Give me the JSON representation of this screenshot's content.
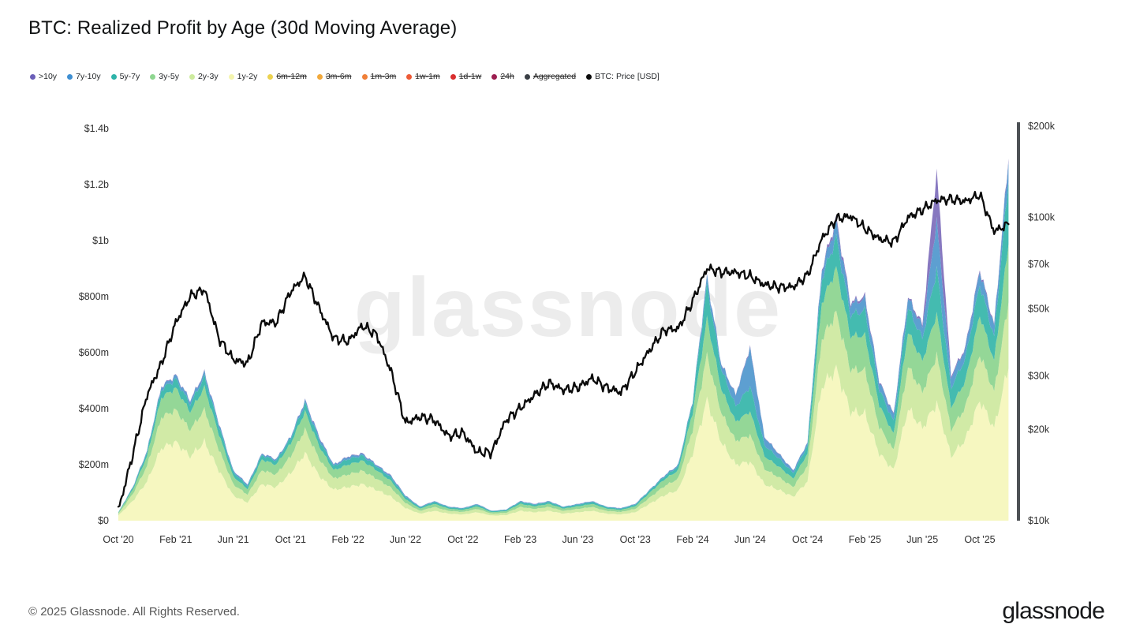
{
  "title": "BTC: Realized Profit by Age (30d Moving Average)",
  "watermark": "glassnode",
  "footer": {
    "copyright": "© 2025 Glassnode. All Rights Reserved.",
    "logo_text": "glassnode"
  },
  "legend": {
    "items": [
      {
        "label": ">10y",
        "color": "#6b5fb8",
        "struck": false
      },
      {
        "label": "7y-10y",
        "color": "#3f8fd2",
        "struck": false
      },
      {
        "label": "5y-7y",
        "color": "#2eb3a9",
        "struck": false
      },
      {
        "label": "3y-5y",
        "color": "#8ed690",
        "struck": false
      },
      {
        "label": "2y-3y",
        "color": "#cdeb9e",
        "struck": false
      },
      {
        "label": "1y-2y",
        "color": "#f4f5ae",
        "struck": false
      },
      {
        "label": "6m-12m",
        "color": "#ecd24f",
        "struck": true
      },
      {
        "label": "3m-6m",
        "color": "#f2a93b",
        "struck": true
      },
      {
        "label": "1m-3m",
        "color": "#f07f38",
        "struck": true
      },
      {
        "label": "1w-1m",
        "color": "#ed5a36",
        "struck": true
      },
      {
        "label": "1d-1w",
        "color": "#d92e2e",
        "struck": true
      },
      {
        "label": "24h",
        "color": "#9c1e50",
        "struck": true
      },
      {
        "label": "Aggregated",
        "color": "#3a3f45",
        "struck": true
      },
      {
        "label": "BTC: Price [USD]",
        "color": "#0a0a0a",
        "struck": false
      }
    ]
  },
  "axes": {
    "y_left_ticks": [
      "$0",
      "$200m",
      "$400m",
      "$600m",
      "$800m",
      "$1b",
      "$1.2b",
      "$1.4b"
    ],
    "y_left_tick_values_musd": [
      0,
      200,
      400,
      600,
      800,
      1000,
      1200,
      1400
    ],
    "y_right_ticks": [
      "$10k",
      "$20k",
      "$30k",
      "$50k",
      "$70k",
      "$100k",
      "$200k"
    ],
    "y_right_tick_values_usd": [
      10000,
      20000,
      30000,
      50000,
      70000,
      100000,
      200000
    ],
    "x_ticks": [
      "Oct '20",
      "Feb '21",
      "Jun '21",
      "Oct '21",
      "Feb '22",
      "Jun '22",
      "Oct '22",
      "Feb '23",
      "Jun '23",
      "Oct '23",
      "Feb '24",
      "Jun '24",
      "Oct '24",
      "Feb '25",
      "Jun '25",
      "Oct '25"
    ]
  },
  "chart_data": {
    "type": "area",
    "stacked": true,
    "title": "BTC: Realized Profit by Age (30d Moving Average)",
    "unit_left": "Realized profit, USD millions (30d MA)",
    "unit_right": "BTC price, USD (log scale)",
    "y_left_range_musd": [
      0,
      1400
    ],
    "y_right_range_usd": [
      10000,
      200000
    ],
    "legend_position": "top",
    "grid": false,
    "months": [
      "2020-10",
      "2020-11",
      "2020-12",
      "2021-01",
      "2021-02",
      "2021-03",
      "2021-04",
      "2021-05",
      "2021-06",
      "2021-07",
      "2021-08",
      "2021-09",
      "2021-10",
      "2021-11",
      "2021-12",
      "2022-01",
      "2022-02",
      "2022-03",
      "2022-04",
      "2022-05",
      "2022-06",
      "2022-07",
      "2022-08",
      "2022-09",
      "2022-10",
      "2022-11",
      "2022-12",
      "2023-01",
      "2023-02",
      "2023-03",
      "2023-04",
      "2023-05",
      "2023-06",
      "2023-07",
      "2023-08",
      "2023-09",
      "2023-10",
      "2023-11",
      "2023-12",
      "2024-01",
      "2024-02",
      "2024-03",
      "2024-04",
      "2024-05",
      "2024-06",
      "2024-07",
      "2024-08",
      "2024-09",
      "2024-10",
      "2024-11",
      "2024-12",
      "2025-01",
      "2025-02",
      "2025-03",
      "2025-04",
      "2025-05",
      "2025-06",
      "2025-07",
      "2025-08",
      "2025-09",
      "2025-10",
      "2025-11",
      "2025-12"
    ],
    "stack_order": "bottom-to-top",
    "series": [
      {
        "name": "1y-2y",
        "color": "#f6f7bd",
        "values": [
          18,
          70,
          140,
          260,
          280,
          230,
          280,
          180,
          90,
          65,
          130,
          120,
          170,
          240,
          160,
          110,
          120,
          130,
          110,
          85,
          45,
          25,
          35,
          25,
          22,
          30,
          18,
          20,
          35,
          30,
          35,
          25,
          30,
          35,
          25,
          22,
          30,
          60,
          90,
          110,
          240,
          430,
          280,
          200,
          210,
          130,
          110,
          85,
          140,
          480,
          540,
          390,
          380,
          240,
          180,
          400,
          330,
          420,
          230,
          290,
          430,
          330,
          550
        ]
      },
      {
        "name": "2y-3y",
        "color": "#cfe9a2",
        "values": [
          6,
          25,
          55,
          110,
          115,
          95,
          115,
          75,
          40,
          28,
          50,
          45,
          60,
          85,
          60,
          40,
          45,
          48,
          40,
          32,
          18,
          10,
          14,
          10,
          9,
          12,
          7,
          8,
          14,
          12,
          14,
          10,
          12,
          14,
          10,
          9,
          12,
          22,
          32,
          40,
          85,
          160,
          105,
          85,
          95,
          55,
          45,
          35,
          55,
          170,
          200,
          150,
          155,
          95,
          70,
          150,
          130,
          170,
          95,
          115,
          165,
          130,
          230
        ]
      },
      {
        "name": "3y-5y",
        "color": "#90d593",
        "values": [
          4,
          15,
          35,
          70,
          78,
          64,
          80,
          55,
          28,
          20,
          38,
          35,
          45,
          65,
          45,
          30,
          35,
          36,
          30,
          24,
          14,
          8,
          11,
          8,
          7,
          9,
          5,
          6,
          11,
          9,
          11,
          8,
          9,
          11,
          8,
          7,
          9,
          17,
          24,
          30,
          62,
          130,
          85,
          68,
          85,
          45,
          38,
          30,
          45,
          130,
          160,
          120,
          125,
          78,
          58,
          125,
          110,
          150,
          80,
          95,
          140,
          110,
          210
        ]
      },
      {
        "name": "5y-7y",
        "color": "#3cb8ad",
        "values": [
          1.5,
          7,
          14,
          28,
          32,
          27,
          38,
          28,
          15,
          11,
          16,
          14,
          18,
          28,
          22,
          14,
          20,
          18,
          14,
          12,
          8,
          5,
          7,
          5,
          5,
          6,
          3.5,
          4,
          7,
          6,
          7,
          5,
          6,
          7,
          5,
          4.5,
          6,
          8,
          10,
          14,
          35,
          120,
          70,
          55,
          90,
          40,
          30,
          20,
          28,
          85,
          110,
          75,
          90,
          55,
          45,
          85,
          80,
          160,
          70,
          80,
          110,
          85,
          230
        ]
      },
      {
        "name": "7y-10y",
        "color": "#569bcf",
        "values": [
          0.4,
          2.5,
          5,
          10,
          13,
          12,
          14,
          10,
          6,
          5,
          5,
          5,
          6,
          10,
          10,
          5,
          8,
          6,
          5,
          6,
          4,
          2,
          2.5,
          2,
          1.8,
          2.5,
          1.3,
          1.6,
          2.5,
          2.5,
          2.5,
          1.8,
          2.5,
          2.5,
          1.8,
          2,
          2.5,
          2.5,
          3.5,
          5.5,
          7,
          27,
          18,
          40,
          135,
          28,
          15,
          9,
          11,
          30,
          55,
          38,
          42,
          28,
          23,
          35,
          42,
          170,
          38,
          35,
          48,
          40,
          70
        ]
      },
      {
        "name": ">10y",
        "color": "#8272bd",
        "values": [
          0.1,
          0.5,
          1,
          2,
          2,
          2,
          3,
          2,
          1,
          1,
          1,
          1,
          1,
          2,
          3,
          1,
          2,
          2,
          1,
          1.5,
          1,
          0.5,
          0.5,
          0.5,
          0.4,
          0.5,
          0.3,
          0.4,
          0.5,
          0.5,
          0.5,
          0.3,
          0.5,
          0.5,
          0.3,
          0.4,
          0.5,
          0.5,
          0.6,
          0.7,
          1,
          3,
          2,
          2,
          5,
          2,
          2,
          1,
          1,
          5,
          15,
          7,
          8,
          4,
          4,
          5,
          8,
          180,
          7,
          5,
          7,
          5,
          10
        ]
      }
    ],
    "price": {
      "name": "BTC: Price [USD]",
      "color": "#0a0a0a",
      "axis": "right",
      "values": [
        10800,
        16500,
        26000,
        33000,
        45000,
        55000,
        58000,
        40000,
        34000,
        33000,
        45000,
        45000,
        57000,
        64000,
        50000,
        40000,
        39000,
        44000,
        41000,
        31000,
        21000,
        22000,
        21500,
        19000,
        19500,
        16800,
        16800,
        21500,
        23500,
        26000,
        28500,
        27000,
        27500,
        29500,
        27500,
        26500,
        31000,
        36500,
        42500,
        43000,
        53000,
        68000,
        66000,
        66000,
        64000,
        60000,
        59000,
        59000,
        64500,
        85000,
        99000,
        101000,
        92000,
        85000,
        83000,
        100000,
        106000,
        114000,
        115000,
        113000,
        119000,
        90000,
        95000
      ]
    }
  }
}
